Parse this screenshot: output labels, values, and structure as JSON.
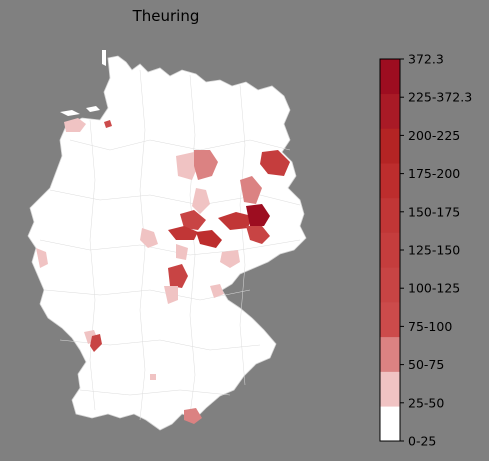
{
  "title": "Theuring",
  "legend": {
    "bins": [
      {
        "label": "0-25",
        "color": "#ffffff"
      },
      {
        "label": "25-50",
        "color": "#f0c3c3"
      },
      {
        "label": "50-75",
        "color": "#db8282"
      },
      {
        "label": "75-100",
        "color": "#cc4b4b"
      },
      {
        "label": "100-125",
        "color": "#c84444"
      },
      {
        "label": "125-150",
        "color": "#c53d3d"
      },
      {
        "label": "150-175",
        "color": "#c13636"
      },
      {
        "label": "175-200",
        "color": "#bd2d2d"
      },
      {
        "label": "200-225",
        "color": "#b42424"
      },
      {
        "label": "225-372.3",
        "color": "#a91a26"
      },
      {
        "label": "372.3",
        "color": "#9d0d20"
      }
    ],
    "tick_labels": [
      "0-25",
      "25-50",
      "50-75",
      "75-100",
      "100-125",
      "125-150",
      "150-175",
      "175-200",
      "200-225",
      "225-372.3",
      "372.3"
    ]
  },
  "map": {
    "base_color": "#ffffff",
    "border_color": "#cfcfcf",
    "highlighted_regions": [
      {
        "name": "region-a",
        "bin": "25-50"
      },
      {
        "name": "region-b",
        "bin": "50-75"
      },
      {
        "name": "region-c",
        "bin": "100-125"
      },
      {
        "name": "region-d",
        "bin": "372.3"
      }
    ]
  }
}
